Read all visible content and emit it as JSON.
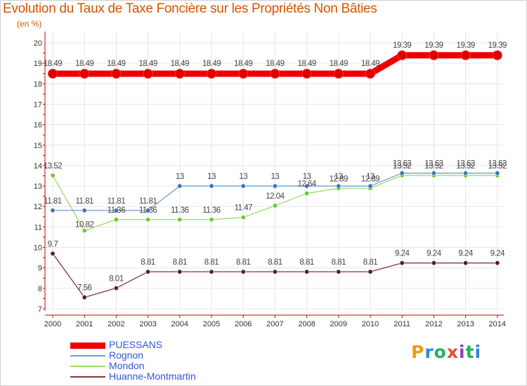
{
  "header": {
    "title": "Evolution du Taux de Taxe Foncière sur les Propriétés Non Bâties",
    "unit": "(en %)"
  },
  "logo": {
    "letters": [
      "P",
      "r",
      "o",
      "x",
      "i",
      "t",
      "i"
    ],
    "colors": [
      "#f39c12",
      "#2e86de",
      "#27ae60",
      "#e74c3c",
      "#8e44ad",
      "#27ae60",
      "#2e86de"
    ]
  },
  "chart_data": {
    "type": "line",
    "title": "Evolution du Taux de Taxe Foncière sur les Propriétés Non Bâties",
    "ylabel": "(en %)",
    "xlabel": "",
    "categories": [
      "2000",
      "2001",
      "2002",
      "2003",
      "2004",
      "2005",
      "2006",
      "2007",
      "2008",
      "2009",
      "2010",
      "2011",
      "2012",
      "2013",
      "2014"
    ],
    "ylim": [
      7,
      20
    ],
    "yticks": [
      "7",
      "8",
      "9",
      "10",
      "11",
      "12",
      "13",
      "14",
      "15",
      "16",
      "17",
      "18",
      "19",
      "20"
    ],
    "grid": true,
    "legend": "bottom-left",
    "series": [
      {
        "name": "PUESSANS",
        "color": "#ee0000",
        "dot": "#dd0000",
        "thick": true,
        "values": [
          18.49,
          18.49,
          18.49,
          18.49,
          18.49,
          18.49,
          18.49,
          18.49,
          18.49,
          18.49,
          18.49,
          19.39,
          19.39,
          19.39,
          19.39
        ],
        "labels": [
          "18.49",
          "18.49",
          "18.49",
          "18.49",
          "18.49",
          "18.49",
          "18.49",
          "18.49",
          "18.49",
          "18.49",
          "18.49",
          "19.39",
          "19.39",
          "19.39",
          "19.39"
        ]
      },
      {
        "name": "Rognon",
        "color": "#6e9fcc",
        "dot": "#3a78b8",
        "thick": false,
        "values": [
          11.81,
          11.81,
          11.81,
          11.81,
          13,
          13,
          13,
          13,
          13,
          13,
          13,
          13.63,
          13.63,
          13.63,
          13.63
        ],
        "labels": [
          "11.81",
          "11.81",
          "11.81",
          "11.81",
          "13",
          "13",
          "13",
          "13",
          "13",
          "13",
          "13",
          "13.63",
          "13.63",
          "13.63",
          "13.63"
        ]
      },
      {
        "name": "Mondon",
        "color": "#99dd66",
        "dot": "#66cc33",
        "thick": false,
        "values": [
          13.52,
          10.82,
          11.36,
          11.36,
          11.36,
          11.36,
          11.47,
          12.04,
          12.64,
          12.89,
          12.89,
          13.52,
          13.52,
          13.52,
          13.52
        ],
        "labels": [
          "13.52",
          "10.82",
          "11.36",
          "11.36",
          "11.36",
          "11.36",
          "11.47",
          "12.04",
          "12.64",
          "12.89",
          "12.89",
          "13.52",
          "13.52",
          "13.52",
          "13.52"
        ]
      },
      {
        "name": "Huanne-Montmartin",
        "color": "#7a3a3a",
        "dot": "#5a1f1f",
        "thick": false,
        "values": [
          9.7,
          7.56,
          8.01,
          8.81,
          8.81,
          8.81,
          8.81,
          8.81,
          8.81,
          8.81,
          8.81,
          9.24,
          9.24,
          9.24,
          9.24
        ],
        "labels": [
          "9.7",
          "7.56",
          "8.01",
          "8.81",
          "8.81",
          "8.81",
          "8.81",
          "8.81",
          "8.81",
          "8.81",
          "8.81",
          "9.24",
          "9.24",
          "9.24",
          "9.24"
        ]
      }
    ]
  }
}
